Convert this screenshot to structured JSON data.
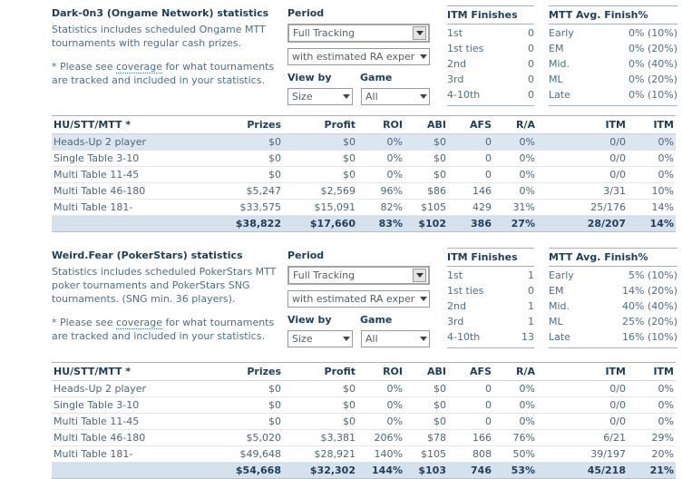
{
  "sections": [
    {
      "title": "Dark-0n3 (Ongame Network) statistics",
      "description": "Statistics includes scheduled Ongame MTT tournaments with regular cash prizes.",
      "note_prefix": "* Please see ",
      "note_link": "coverage",
      "note_suffix": " for what tournaments are tracked and included in your statistics.",
      "period": {
        "label": "Period",
        "tracking_value": "Full Tracking",
        "ra_value": "with estimated RA exper",
        "view_by_label": "View by",
        "game_label": "Game",
        "view_by_value": "Size",
        "game_value": "All"
      },
      "itm_finishes": {
        "header": "ITM Finishes",
        "rows": [
          [
            "1st",
            "0"
          ],
          [
            "1st ties",
            "0"
          ],
          [
            "2nd",
            "0"
          ],
          [
            "3rd",
            "0"
          ],
          [
            "4-10th",
            "0"
          ]
        ]
      },
      "mtt_avg": {
        "header": "MTT Avg. Finish%",
        "rows": [
          [
            "Early",
            "0% (10%)"
          ],
          [
            "EM",
            "0% (20%)"
          ],
          [
            "Mid.",
            "0% (40%)"
          ],
          [
            "ML",
            "0% (20%)"
          ],
          [
            "Late",
            "0% (10%)"
          ]
        ]
      },
      "table": {
        "headers": [
          "HU/STT/MTT *",
          "Prizes",
          "Profit",
          "ROI",
          "ABI",
          "AFS",
          "R/A",
          "ITM",
          "ITM"
        ],
        "rows": [
          {
            "highlight": true,
            "cells": [
              "Heads-Up 2 player",
              "$0",
              "$0",
              "0%",
              "$0",
              "0",
              "0%",
              "0/0",
              "0%"
            ]
          },
          {
            "highlight": false,
            "cells": [
              "Single Table 3-10",
              "$0",
              "$0",
              "0%",
              "$0",
              "0",
              "0%",
              "0/0",
              "0%"
            ]
          },
          {
            "highlight": false,
            "cells": [
              "Multi Table 11-45",
              "$0",
              "$0",
              "0%",
              "$0",
              "0",
              "0%",
              "0/0",
              "0%"
            ]
          },
          {
            "highlight": false,
            "cells": [
              "Multi Table 46-180",
              "$5,247",
              "$2,569",
              "96%",
              "$86",
              "146",
              "0%",
              "3/31",
              "10%"
            ]
          },
          {
            "highlight": false,
            "cells": [
              "Multi Table 181-",
              "$33,575",
              "$15,091",
              "82%",
              "$105",
              "429",
              "31%",
              "25/176",
              "14%"
            ]
          }
        ],
        "total": [
          "",
          "$38,822",
          "$17,660",
          "83%",
          "$102",
          "386",
          "27%",
          "28/207",
          "14%"
        ]
      }
    },
    {
      "title": "Weird.Fear (PokerStars) statistics",
      "description": "Statistics includes scheduled PokerStars MTT poker tournaments and PokerStars SNG tournaments. (SNG min. 36 players).",
      "note_prefix": "* Please see ",
      "note_link": "coverage",
      "note_suffix": " for what tournaments are tracked and included in your statistics.",
      "period": {
        "label": "Period",
        "tracking_value": "Full Tracking",
        "ra_value": "with estimated RA exper",
        "view_by_label": "View by",
        "game_label": "Game",
        "view_by_value": "Size",
        "game_value": "All"
      },
      "itm_finishes": {
        "header": "ITM Finishes",
        "rows": [
          [
            "1st",
            "1"
          ],
          [
            "1st ties",
            "0"
          ],
          [
            "2nd",
            "1"
          ],
          [
            "3rd",
            "1"
          ],
          [
            "4-10th",
            "13"
          ]
        ]
      },
      "mtt_avg": {
        "header": "MTT Avg. Finish%",
        "rows": [
          [
            "Early",
            "5% (10%)"
          ],
          [
            "EM",
            "14% (20%)"
          ],
          [
            "Mid.",
            "40% (40%)"
          ],
          [
            "ML",
            "25% (20%)"
          ],
          [
            "Late",
            "16% (10%)"
          ]
        ]
      },
      "table": {
        "headers": [
          "HU/STT/MTT *",
          "Prizes",
          "Profit",
          "ROI",
          "ABI",
          "AFS",
          "R/A",
          "ITM",
          "ITM"
        ],
        "rows": [
          {
            "highlight": false,
            "cells": [
              "Heads-Up 2 player",
              "$0",
              "$0",
              "0%",
              "$0",
              "0",
              "0%",
              "0/0",
              "0%"
            ]
          },
          {
            "highlight": false,
            "cells": [
              "Single Table 3-10",
              "$0",
              "$0",
              "0%",
              "$0",
              "0",
              "0%",
              "0/0",
              "0%"
            ]
          },
          {
            "highlight": false,
            "cells": [
              "Multi Table 11-45",
              "$0",
              "$0",
              "0%",
              "$0",
              "0",
              "0%",
              "0/0",
              "0%"
            ]
          },
          {
            "highlight": false,
            "cells": [
              "Multi Table 46-180",
              "$5,020",
              "$3,381",
              "206%",
              "$78",
              "166",
              "76%",
              "6/21",
              "29%"
            ]
          },
          {
            "highlight": false,
            "cells": [
              "Multi Table 181-",
              "$49,648",
              "$28,921",
              "140%",
              "$105",
              "808",
              "50%",
              "39/197",
              "20%"
            ]
          }
        ],
        "total": [
          "",
          "$54,668",
          "$32,302",
          "144%",
          "$103",
          "746",
          "53%",
          "45/218",
          "21%"
        ]
      }
    }
  ]
}
